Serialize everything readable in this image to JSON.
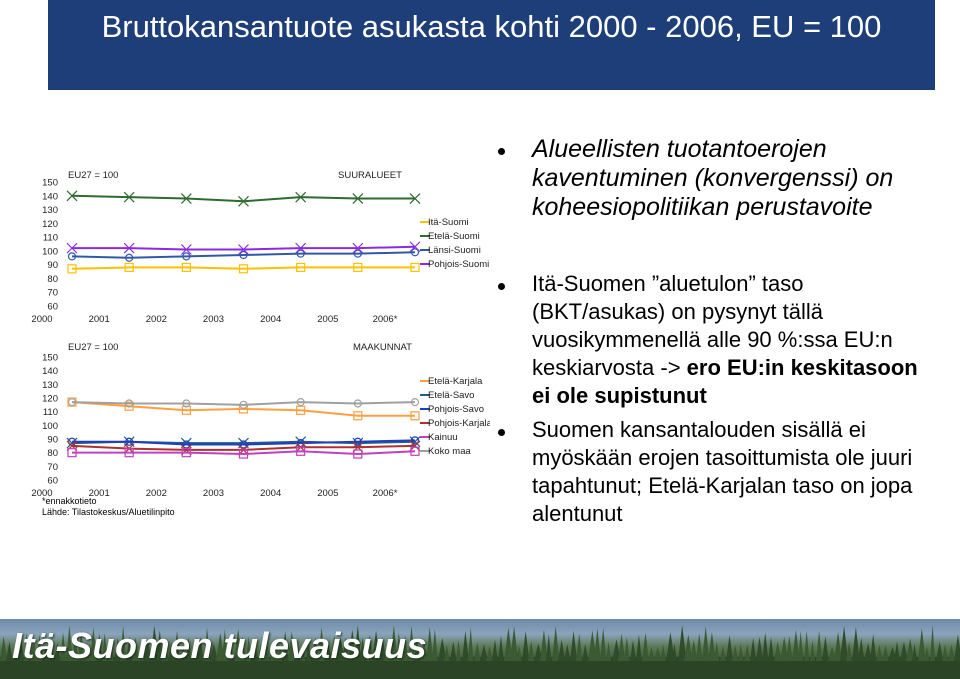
{
  "title": "Bruttokansantuote asukasta kohti 2000 - 2006, EU = 100",
  "chart_data": [
    {
      "type": "line",
      "label_left": "EU27 = 100",
      "label_right": "SUURALUEET",
      "x": [
        "2000",
        "2001",
        "2002",
        "2003",
        "2004",
        "2005",
        "2006*"
      ],
      "ylim": [
        60,
        150
      ],
      "yticks": [
        60,
        70,
        80,
        90,
        100,
        110,
        120,
        130,
        140,
        150
      ],
      "series": [
        {
          "name": "Itä-Suomi",
          "color": "#ffc000",
          "values": [
            87,
            88,
            88,
            87,
            88,
            88,
            88
          ]
        },
        {
          "name": "Etelä-Suomi",
          "color": "#2e6b2e",
          "values": [
            140,
            139,
            138,
            136,
            139,
            138,
            138
          ]
        },
        {
          "name": "Länsi-Suomi",
          "color": "#2e5aa8",
          "values": [
            96,
            95,
            96,
            97,
            98,
            98,
            99
          ]
        },
        {
          "name": "Pohjois-Suomi",
          "color": "#8a2be2",
          "values": [
            102,
            102,
            101,
            101,
            102,
            102,
            103
          ]
        }
      ]
    },
    {
      "type": "line",
      "label_left": "EU27 = 100",
      "label_right": "MAAKUNNAT",
      "x": [
        "2000",
        "2001",
        "2002",
        "2003",
        "2004",
        "2005",
        "2006*"
      ],
      "ylim": [
        60,
        150
      ],
      "yticks": [
        60,
        70,
        80,
        90,
        100,
        110,
        120,
        130,
        140,
        150
      ],
      "series": [
        {
          "name": "Etelä-Karjala",
          "color": "#ffa040",
          "values": [
            117,
            114,
            111,
            112,
            111,
            107,
            107
          ]
        },
        {
          "name": "Etelä-Savo",
          "color": "#1f5f8b",
          "values": [
            87,
            88,
            87,
            87,
            88,
            87,
            88
          ]
        },
        {
          "name": "Pohjois-Savo",
          "color": "#1f3fbf",
          "values": [
            88,
            88,
            86,
            86,
            87,
            88,
            89
          ]
        },
        {
          "name": "Pohjois-Karjala",
          "color": "#b03030",
          "values": [
            85,
            83,
            82,
            82,
            84,
            84,
            85
          ]
        },
        {
          "name": "Kainuu",
          "color": "#c040c0",
          "values": [
            80,
            80,
            80,
            79,
            81,
            79,
            81
          ]
        },
        {
          "name": "Koko maa",
          "color": "#a0a0a0",
          "values": [
            117,
            116,
            116,
            115,
            117,
            116,
            117
          ]
        }
      ]
    }
  ],
  "notes": {
    "estimate": "*ennakkotieto",
    "source": "Lähde: Tilastokeskus/Aluetilinpito"
  },
  "bullets": {
    "b1": "Alueellisten tuotantoerojen kaventuminen (konvergenssi) on koheesiopolitiikan perustavoite",
    "b2_pre": "Itä-Suomen ”aluetulon” taso (BKT/asukas) on pysynyt tällä vuosikymmenellä alle 90 %:ssa EU:n keskiarvosta -> ",
    "b2_bold": "ero EU:in keskitasoon ei ole supistunut",
    "b3": "Suomen kansantalouden sisällä ei myöskään erojen tasoittumista ole juuri tapahtunut; Etelä-Karjalan taso on jopa alentunut"
  },
  "footer": {
    "text": "Itä-Suomen tulevaisuus"
  }
}
